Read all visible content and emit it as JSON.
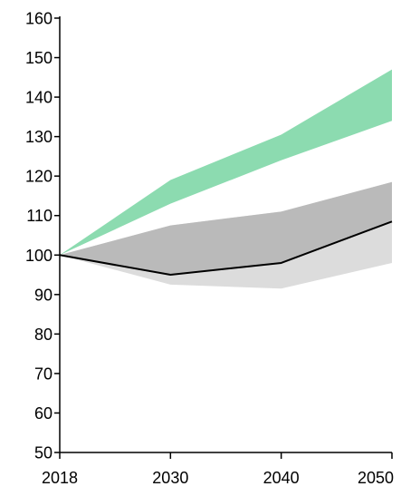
{
  "chart_data": {
    "type": "area",
    "x": [
      "2018",
      "2030",
      "2040",
      "2050"
    ],
    "ylim": [
      50,
      160
    ],
    "y_ticks": [
      "50",
      "60",
      "70",
      "80",
      "90",
      "100",
      "110",
      "120",
      "130",
      "140",
      "150",
      "160"
    ],
    "grid": false,
    "legend": "none",
    "bands": [
      {
        "color": "#8cdbb0",
        "lower": [
          100,
          113,
          124,
          134
        ],
        "upper": [
          100,
          119,
          130.5,
          147
        ]
      },
      {
        "color": "#dcdcdc",
        "lower": [
          100,
          92.5,
          91.5,
          98
        ],
        "upper": [
          100,
          107.5,
          111,
          118.5
        ]
      },
      {
        "color": "#bababa",
        "lower": [
          100,
          95,
          98,
          108.5
        ],
        "upper": [
          100,
          107.5,
          111,
          118.5
        ]
      }
    ],
    "series": [
      {
        "color": "#000000",
        "values": [
          100,
          95,
          98,
          108.5
        ]
      }
    ]
  }
}
